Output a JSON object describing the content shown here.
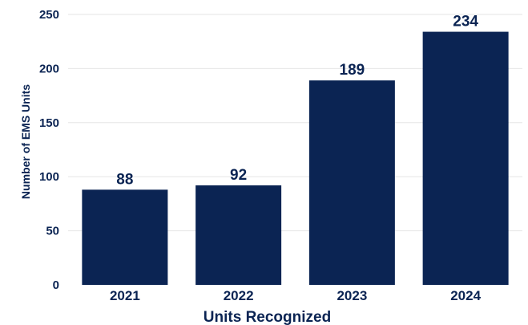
{
  "chart_data": {
    "type": "bar",
    "categories": [
      "2021",
      "2022",
      "2023",
      "2024"
    ],
    "values": [
      88,
      92,
      189,
      234
    ],
    "data_labels": [
      "88",
      "92",
      "189",
      "234"
    ],
    "title": "",
    "xlabel": "Units Recognized",
    "ylabel": "Number of EMS Units",
    "ylim": [
      0,
      250
    ],
    "yticks": [
      0,
      50,
      100,
      150,
      200,
      250
    ],
    "ytick_labels": [
      "0",
      "50",
      "100",
      "150",
      "200",
      "250"
    ],
    "grid": true,
    "legend": "none",
    "colors": {
      "bar": "#0b2453",
      "text": "#0b2453",
      "grid": "#e6e6e6"
    }
  }
}
